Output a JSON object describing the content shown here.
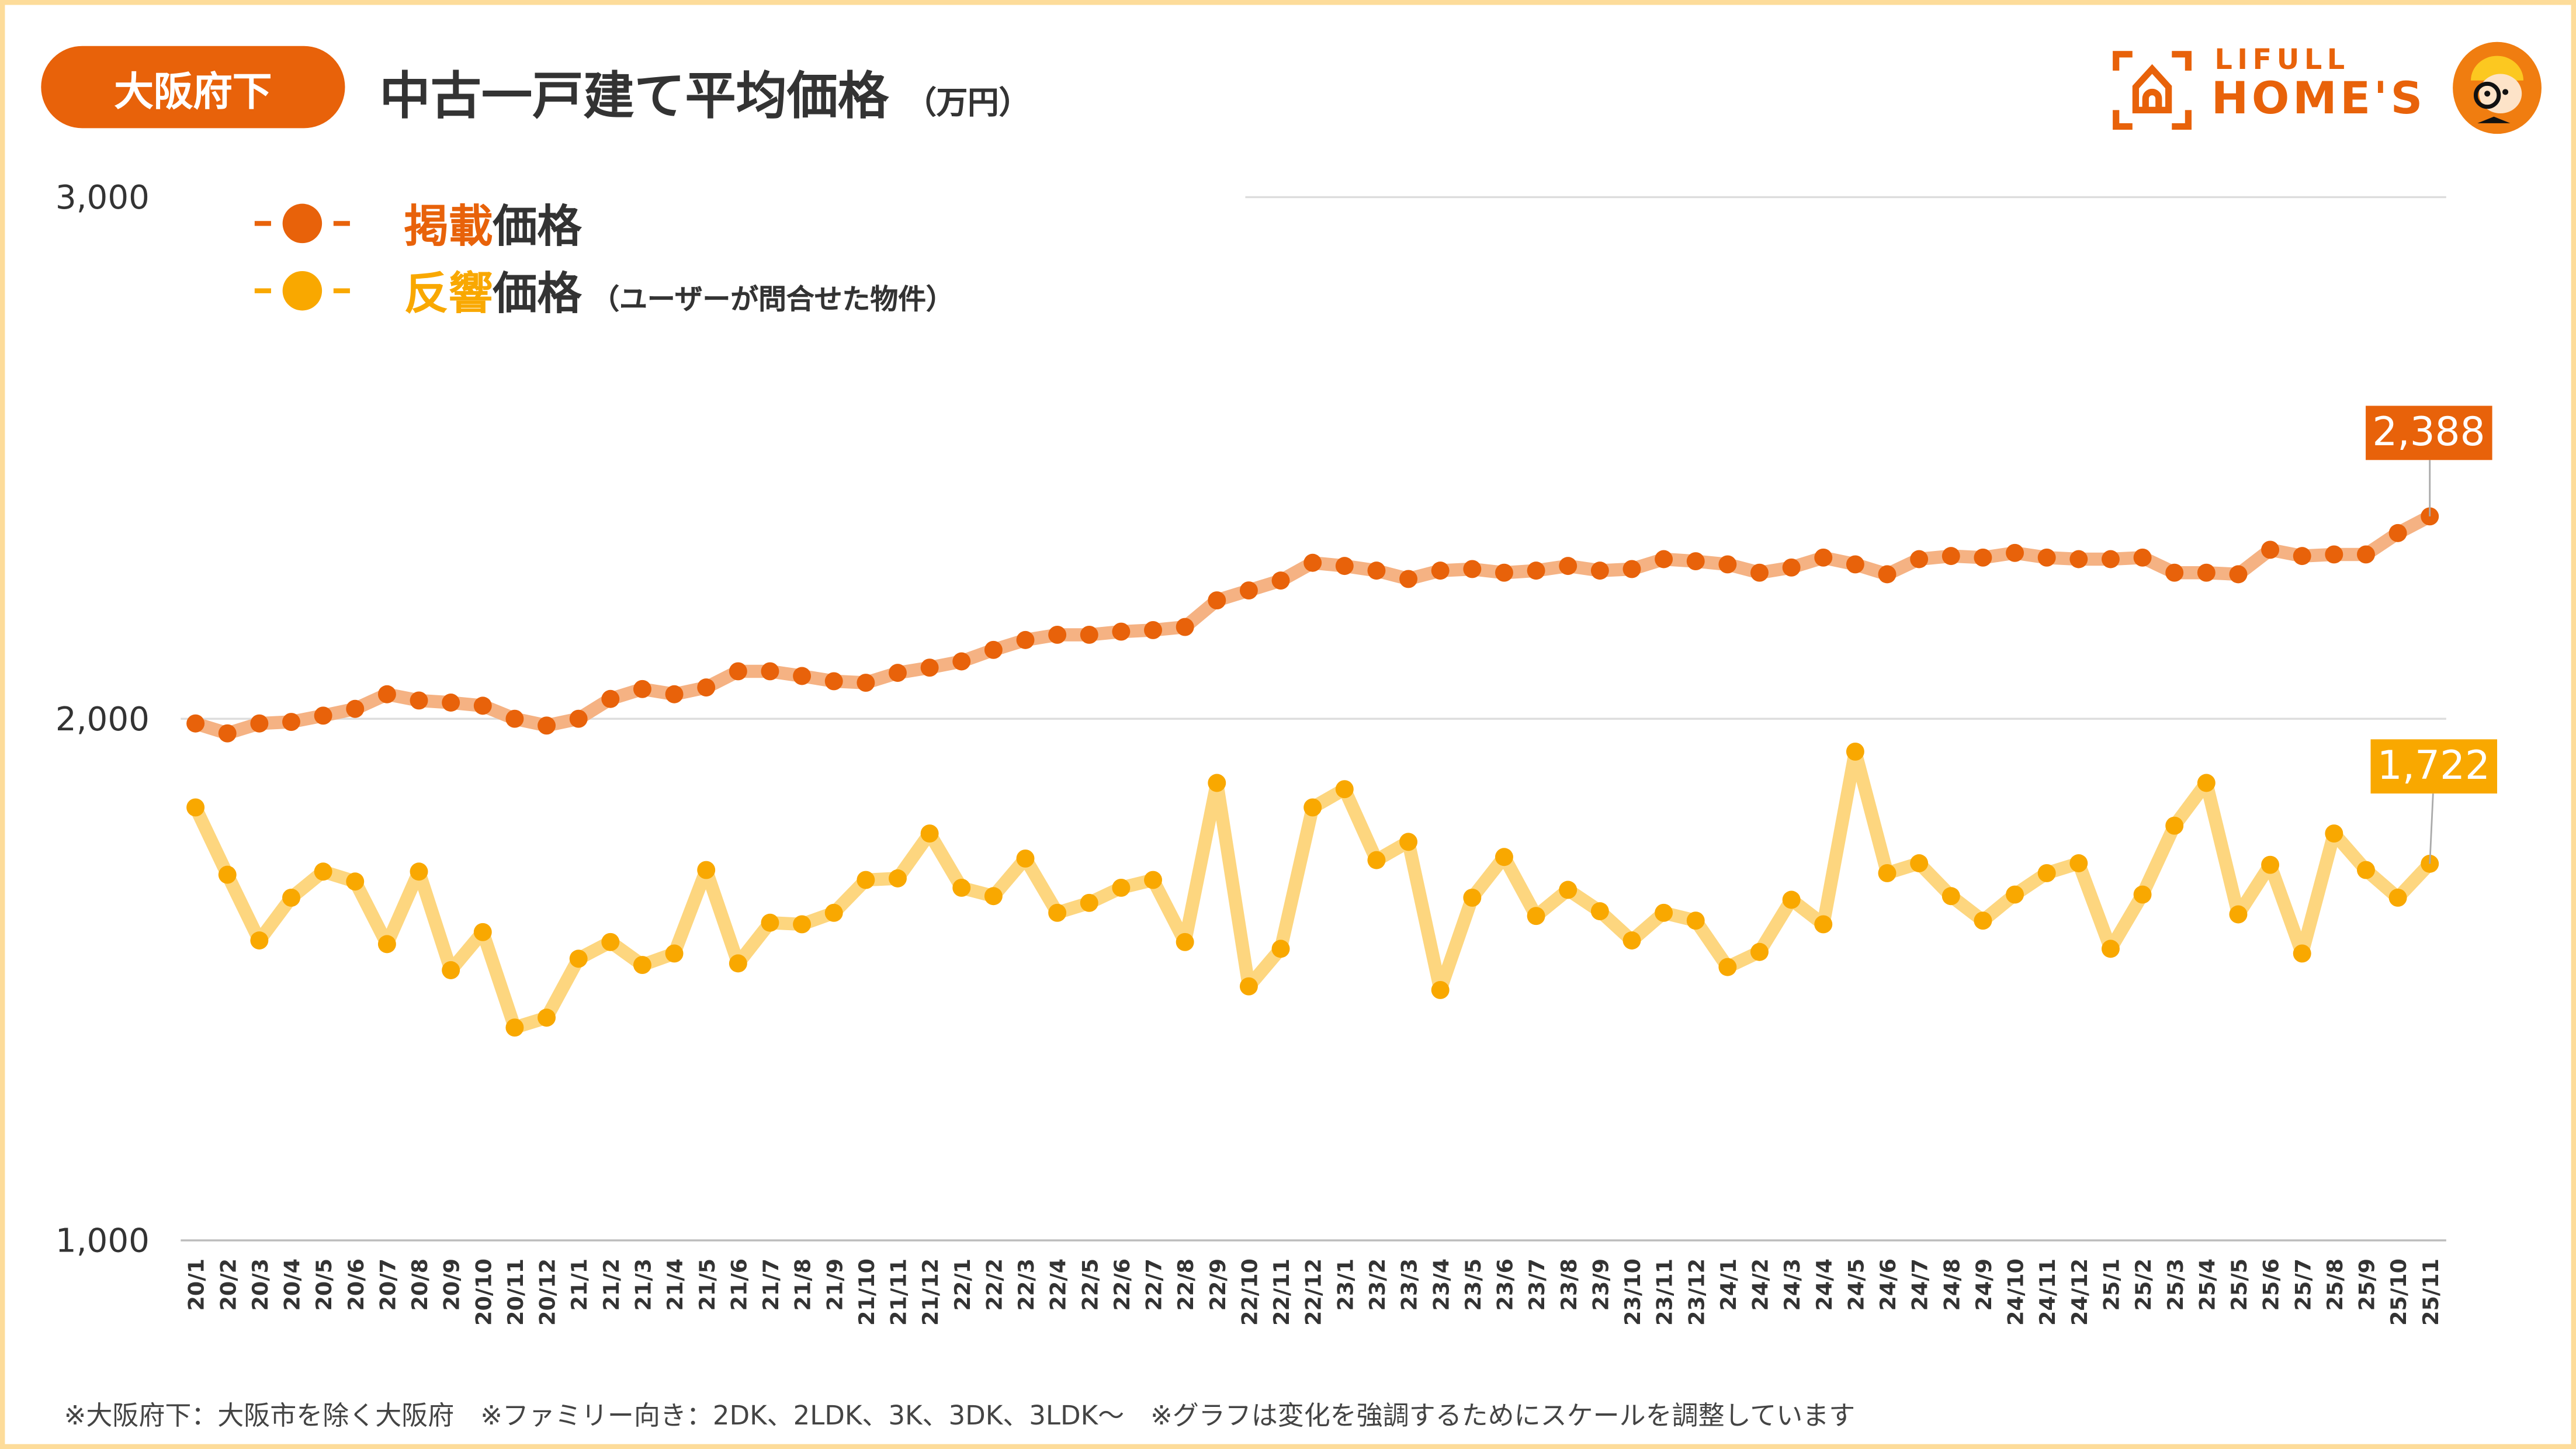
{
  "header": {
    "region_badge": "大阪府下",
    "title": "中古一戸建て平均価格",
    "unit": "（万円）"
  },
  "logo": {
    "line1": "LIFULL",
    "line2": "HOME'S"
  },
  "legend": {
    "listing": {
      "accent": "掲載",
      "rest": "価格"
    },
    "response": {
      "accent": "反響",
      "rest": "価格",
      "note": "（ユーザーが問合せた物件）"
    }
  },
  "callouts": {
    "listing_last": "2,388",
    "response_last": "1,722"
  },
  "footer": "※大阪府下：大阪市を除く大阪府　※ファミリー向き：2DK、2LDK、3K、3DK、3LDK～　※グラフは変化を強調するためにスケールを調整しています",
  "colors": {
    "listing": "#e8620a",
    "listing_line": "#f5b283",
    "response": "#f9a800",
    "response_line": "#fdd67f",
    "badge": "#e8620a"
  },
  "chart_data": {
    "type": "line",
    "title": "中古一戸建て平均価格（万円）",
    "xlabel": "",
    "ylabel": "万円",
    "ylim": [
      1000,
      3000
    ],
    "yticks": [
      "1,000",
      "2,000",
      "3,000"
    ],
    "ytick_values": [
      1000,
      2000,
      3000
    ],
    "grid": true,
    "legend_position": "top-left",
    "x": [
      "20/1",
      "20/2",
      "20/3",
      "20/4",
      "20/5",
      "20/6",
      "20/7",
      "20/8",
      "20/9",
      "20/10",
      "20/11",
      "20/12",
      "21/1",
      "21/2",
      "21/3",
      "21/4",
      "21/5",
      "21/6",
      "21/7",
      "21/8",
      "21/9",
      "21/10",
      "21/11",
      "21/12",
      "22/1",
      "22/2",
      "22/3",
      "22/4",
      "22/5",
      "22/6",
      "22/7",
      "22/8",
      "22/9",
      "22/10",
      "22/11",
      "22/12",
      "23/1",
      "23/2",
      "23/3",
      "23/4",
      "23/5",
      "23/6",
      "23/7",
      "23/8",
      "23/9",
      "23/10",
      "23/11",
      "23/12",
      "24/1",
      "24/2",
      "24/3",
      "24/4",
      "24/5",
      "24/6",
      "24/7",
      "24/8",
      "24/9",
      "24/10",
      "24/11",
      "24/12",
      "25/1",
      "25/2",
      "25/3",
      "25/4",
      "25/5",
      "25/6",
      "25/7",
      "25/8",
      "25/9",
      "25/10",
      "25/11"
    ],
    "series": [
      {
        "name": "掲載価格",
        "values": [
          1991,
          1972,
          1991,
          1994,
          2006,
          2019,
          2047,
          2035,
          2031,
          2025,
          2000,
          1987,
          2000,
          2038,
          2057,
          2047,
          2060,
          2091,
          2091,
          2082,
          2072,
          2069,
          2088,
          2098,
          2110,
          2132,
          2151,
          2161,
          2161,
          2167,
          2170,
          2176,
          2227,
          2246,
          2265,
          2299,
          2293,
          2284,
          2268,
          2284,
          2287,
          2280,
          2284,
          2293,
          2284,
          2287,
          2306,
          2302,
          2296,
          2280,
          2290,
          2309,
          2296,
          2277,
          2306,
          2312,
          2309,
          2318,
          2309,
          2306,
          2306,
          2309,
          2280,
          2280,
          2277,
          2324,
          2312,
          2315,
          2315,
          2356,
          2388
        ]
      },
      {
        "name": "反響価格",
        "values": [
          1830,
          1701,
          1575,
          1657,
          1707,
          1688,
          1568,
          1707,
          1518,
          1591,
          1408,
          1427,
          1540,
          1572,
          1528,
          1550,
          1710,
          1531,
          1609,
          1606,
          1628,
          1691,
          1694,
          1780,
          1676,
          1660,
          1732,
          1628,
          1647,
          1676,
          1691,
          1572,
          1877,
          1487,
          1559,
          1830,
          1865,
          1729,
          1764,
          1480,
          1657,
          1735,
          1622,
          1672,
          1631,
          1575,
          1628,
          1613,
          1524,
          1553,
          1653,
          1606,
          1937,
          1704,
          1723,
          1660,
          1613,
          1663,
          1704,
          1723,
          1559,
          1663,
          1795,
          1877,
          1625,
          1720,
          1550,
          1780,
          1710,
          1657,
          1722
        ]
      }
    ]
  }
}
